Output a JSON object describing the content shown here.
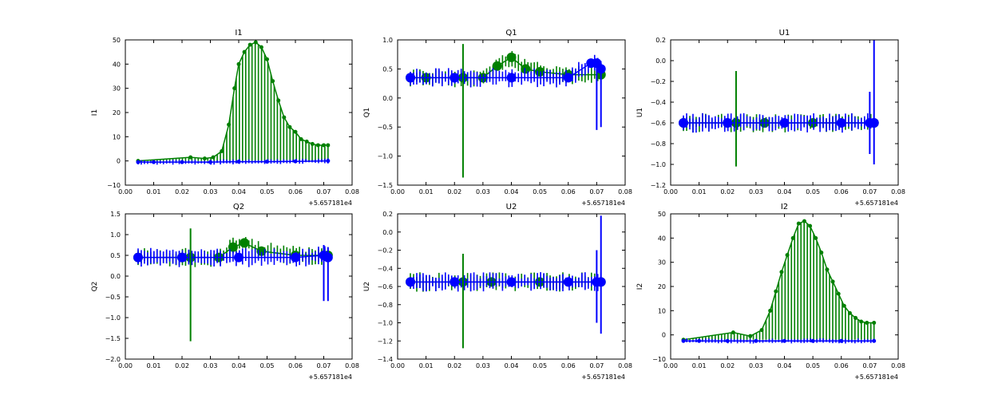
{
  "colors": {
    "series_green": "#008000",
    "series_blue": "#0000ff",
    "axes": "#000000",
    "background": "#ffffff"
  },
  "chart_data": [
    {
      "type": "line",
      "title": "I1",
      "xlabel": "",
      "ylabel": "I1",
      "x_offset_label": "+5.657181e4",
      "xlim": [
        0.0,
        0.08
      ],
      "ylim": [
        -10,
        50
      ],
      "xticks": [
        "0.00",
        "0.01",
        "0.02",
        "0.03",
        "0.04",
        "0.05",
        "0.06",
        "0.07",
        "0.08"
      ],
      "yticks": [
        "−10",
        "0",
        "10",
        "20",
        "30",
        "40",
        "50"
      ],
      "grid": false,
      "series": [
        {
          "color": "green",
          "marker": "o",
          "x": [
            0.0045,
            0.023,
            0.028,
            0.031,
            0.034,
            0.0365,
            0.0385,
            0.04,
            0.042,
            0.044,
            0.046,
            0.048,
            0.05,
            0.052,
            0.054,
            0.056,
            0.058,
            0.06,
            0.062,
            0.064,
            0.066,
            0.068,
            0.07,
            0.0715
          ],
          "y": [
            0.0,
            1.5,
            1.0,
            1.5,
            4,
            15,
            30,
            40,
            45,
            48,
            49,
            47,
            42,
            33,
            25,
            18,
            14,
            12,
            9,
            8,
            7,
            6.5,
            6.5,
            6.5
          ]
        },
        {
          "color": "blue",
          "marker": "o",
          "x": [
            0.0045,
            0.01,
            0.02,
            0.03,
            0.04,
            0.05,
            0.06,
            0.0715
          ],
          "y": [
            -0.5,
            -0.5,
            -0.5,
            -0.5,
            -0.3,
            -0.3,
            -0.2,
            0.0
          ]
        }
      ]
    },
    {
      "type": "line",
      "title": "Q1",
      "xlabel": "",
      "ylabel": "Q1",
      "x_offset_label": "+5.657181e4",
      "xlim": [
        0.0,
        0.08
      ],
      "ylim": [
        -1.5,
        1.0
      ],
      "xticks": [
        "0.00",
        "0.01",
        "0.02",
        "0.03",
        "0.04",
        "0.05",
        "0.06",
        "0.07",
        "0.08"
      ],
      "yticks": [
        "−1.5",
        "−1.0",
        "−0.5",
        "0.0",
        "0.5",
        "1.0"
      ],
      "grid": false,
      "series": [
        {
          "color": "green",
          "marker": "o",
          "x": [
            0.0045,
            0.01,
            0.02,
            0.023,
            0.03,
            0.035,
            0.04,
            0.045,
            0.05,
            0.06,
            0.0715
          ],
          "y": [
            0.35,
            0.35,
            0.35,
            0.35,
            0.35,
            0.55,
            0.7,
            0.5,
            0.45,
            0.4,
            0.4
          ]
        },
        {
          "color": "blue",
          "marker": "o",
          "x": [
            0.0045,
            0.02,
            0.04,
            0.06,
            0.068,
            0.07,
            0.0715
          ],
          "y": [
            0.35,
            0.35,
            0.35,
            0.35,
            0.6,
            0.6,
            0.5
          ]
        }
      ]
    },
    {
      "type": "line",
      "title": "U1",
      "xlabel": "",
      "ylabel": "U1",
      "x_offset_label": "+5.657181e4",
      "xlim": [
        0.0,
        0.08
      ],
      "ylim": [
        -1.2,
        0.2
      ],
      "xticks": [
        "0.00",
        "0.01",
        "0.02",
        "0.03",
        "0.04",
        "0.05",
        "0.06",
        "0.07",
        "0.08"
      ],
      "yticks": [
        "−1.2",
        "−1.0",
        "−0.8",
        "−0.6",
        "−0.4",
        "−0.2",
        "0.0",
        "0.2"
      ],
      "grid": false,
      "series": [
        {
          "color": "green",
          "marker": "o",
          "x": [
            0.0045,
            0.02,
            0.023,
            0.033,
            0.05,
            0.0715
          ],
          "y": [
            -0.6,
            -0.6,
            -0.6,
            -0.6,
            -0.6,
            -0.6
          ]
        },
        {
          "color": "blue",
          "marker": "o",
          "x": [
            0.0045,
            0.02,
            0.04,
            0.06,
            0.07,
            0.0715
          ],
          "y": [
            -0.6,
            -0.6,
            -0.6,
            -0.6,
            -0.6,
            -0.6
          ]
        }
      ]
    },
    {
      "type": "line",
      "title": "Q2",
      "xlabel": "",
      "ylabel": "Q2",
      "x_offset_label": "+5.657181e4",
      "xlim": [
        0.0,
        0.08
      ],
      "ylim": [
        -2.0,
        1.5
      ],
      "xticks": [
        "0.00",
        "0.01",
        "0.02",
        "0.03",
        "0.04",
        "0.05",
        "0.06",
        "0.07",
        "0.08"
      ],
      "yticks": [
        "−2.0",
        "−1.5",
        "−1.0",
        "−0.5",
        "0.0",
        "0.5",
        "1.0",
        "1.5"
      ],
      "grid": false,
      "series": [
        {
          "color": "green",
          "marker": "o",
          "x": [
            0.0045,
            0.02,
            0.023,
            0.033,
            0.038,
            0.042,
            0.048,
            0.06,
            0.0715
          ],
          "y": [
            0.45,
            0.45,
            0.45,
            0.45,
            0.7,
            0.8,
            0.6,
            0.5,
            0.5
          ]
        },
        {
          "color": "blue",
          "marker": "o",
          "x": [
            0.0045,
            0.02,
            0.04,
            0.06,
            0.07,
            0.0715
          ],
          "y": [
            0.45,
            0.45,
            0.45,
            0.45,
            0.5,
            0.45
          ]
        }
      ]
    },
    {
      "type": "line",
      "title": "U2",
      "xlabel": "",
      "ylabel": "U2",
      "x_offset_label": "+5.657181e4",
      "xlim": [
        0.0,
        0.08
      ],
      "ylim": [
        -1.4,
        0.2
      ],
      "xticks": [
        "0.00",
        "0.01",
        "0.02",
        "0.03",
        "0.04",
        "0.05",
        "0.06",
        "0.07",
        "0.08"
      ],
      "yticks": [
        "−1.4",
        "−1.2",
        "−1.0",
        "−0.8",
        "−0.6",
        "−0.4",
        "−0.2",
        "0.0",
        "0.2"
      ],
      "grid": false,
      "series": [
        {
          "color": "green",
          "marker": "o",
          "x": [
            0.0045,
            0.02,
            0.023,
            0.033,
            0.05,
            0.0715
          ],
          "y": [
            -0.55,
            -0.55,
            -0.55,
            -0.55,
            -0.55,
            -0.55
          ]
        },
        {
          "color": "blue",
          "marker": "o",
          "x": [
            0.0045,
            0.02,
            0.04,
            0.06,
            0.07,
            0.0715
          ],
          "y": [
            -0.55,
            -0.55,
            -0.55,
            -0.55,
            -0.55,
            -0.55
          ]
        }
      ]
    },
    {
      "type": "line",
      "title": "I2",
      "xlabel": "",
      "ylabel": "I2",
      "x_offset_label": "+5.657181e4",
      "xlim": [
        0.0,
        0.08
      ],
      "ylim": [
        -10,
        50
      ],
      "xticks": [
        "0.00",
        "0.01",
        "0.02",
        "0.03",
        "0.04",
        "0.05",
        "0.06",
        "0.07",
        "0.08"
      ],
      "yticks": [
        "−10",
        "0",
        "10",
        "20",
        "30",
        "40",
        "50"
      ],
      "grid": false,
      "series": [
        {
          "color": "green",
          "marker": "o",
          "x": [
            0.0045,
            0.022,
            0.028,
            0.032,
            0.035,
            0.037,
            0.039,
            0.041,
            0.043,
            0.045,
            0.047,
            0.049,
            0.051,
            0.053,
            0.055,
            0.057,
            0.059,
            0.061,
            0.063,
            0.065,
            0.067,
            0.069,
            0.0715
          ],
          "y": [
            -2,
            1,
            -0.5,
            2,
            10,
            18,
            26,
            33,
            40,
            46,
            47,
            45,
            40,
            34,
            27,
            22,
            17,
            12,
            9,
            7,
            5.5,
            5,
            5
          ]
        },
        {
          "color": "blue",
          "marker": "o",
          "x": [
            0.0045,
            0.01,
            0.02,
            0.03,
            0.04,
            0.05,
            0.06,
            0.0715
          ],
          "y": [
            -2.5,
            -2.5,
            -2.5,
            -2.5,
            -2.5,
            -2.5,
            -2.5,
            -2.5
          ]
        }
      ]
    }
  ]
}
